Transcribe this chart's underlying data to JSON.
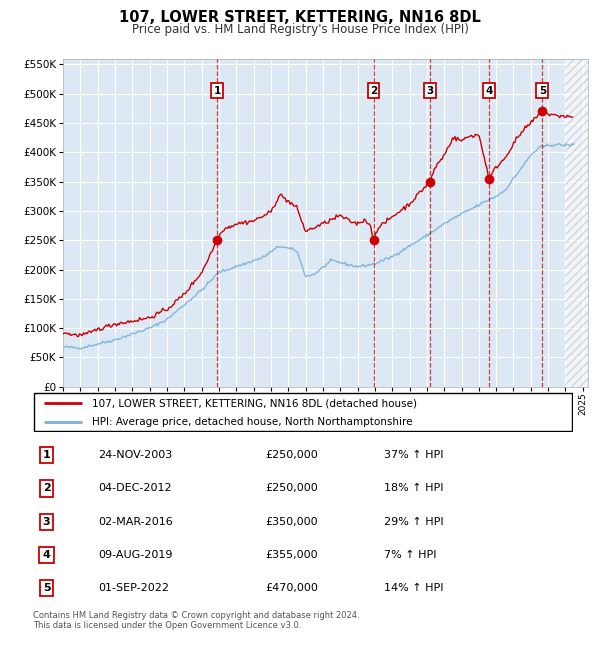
{
  "title": "107, LOWER STREET, KETTERING, NN16 8DL",
  "subtitle": "Price paid vs. HM Land Registry's House Price Index (HPI)",
  "legend_line1": "107, LOWER STREET, KETTERING, NN16 8DL (detached house)",
  "legend_line2": "HPI: Average price, detached house, North Northamptonshire",
  "footer_line1": "Contains HM Land Registry data © Crown copyright and database right 2024.",
  "footer_line2": "This data is licensed under the Open Government Licence v3.0.",
  "hpi_color": "#7ab0d8",
  "price_color": "#cc0000",
  "background_color": "#dce9f5",
  "ylim": [
    0,
    560000
  ],
  "yticks": [
    0,
    50000,
    100000,
    150000,
    200000,
    250000,
    300000,
    350000,
    400000,
    450000,
    500000,
    550000
  ],
  "xtick_years": [
    1995,
    1996,
    1997,
    1998,
    1999,
    2000,
    2001,
    2002,
    2003,
    2004,
    2005,
    2006,
    2007,
    2008,
    2009,
    2010,
    2011,
    2012,
    2013,
    2014,
    2015,
    2016,
    2017,
    2018,
    2019,
    2020,
    2021,
    2022,
    2023,
    2024,
    2025
  ],
  "trans_years": [
    2003.896,
    2012.921,
    2016.167,
    2019.604,
    2022.667
  ],
  "trans_prices": [
    250000,
    250000,
    350000,
    355000,
    470000
  ],
  "table_rows": [
    [
      1,
      "24-NOV-2003",
      "£250,000",
      "37% ↑ HPI"
    ],
    [
      2,
      "04-DEC-2012",
      "£250,000",
      "18% ↑ HPI"
    ],
    [
      3,
      "02-MAR-2016",
      "£350,000",
      "29% ↑ HPI"
    ],
    [
      4,
      "09-AUG-2019",
      "£355,000",
      "7% ↑ HPI"
    ],
    [
      5,
      "01-SEP-2022",
      "£470,000",
      "14% ↑ HPI"
    ]
  ]
}
